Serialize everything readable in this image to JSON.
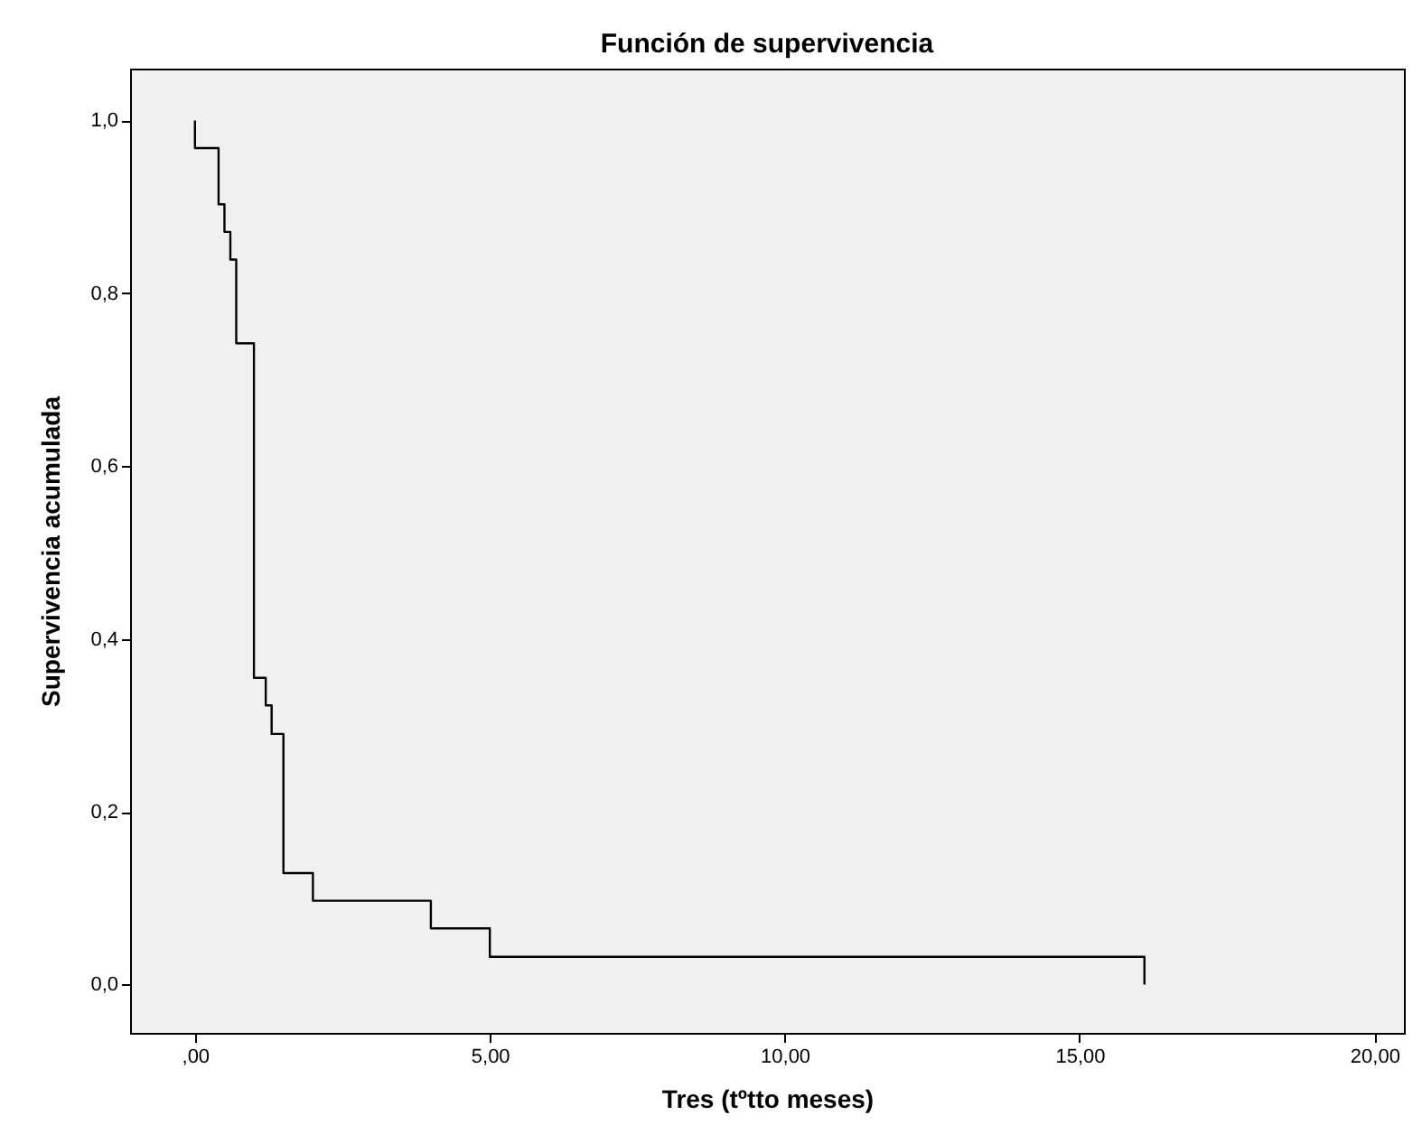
{
  "chart_data": {
    "type": "step",
    "title": "Función de supervivencia",
    "xlabel": "Tres (tºtto meses)",
    "ylabel": "Supervivencia acumulada",
    "x": [
      0,
      0,
      0.4,
      0.5,
      0.6,
      0.7,
      1.0,
      1.2,
      1.3,
      1.5,
      2.0,
      4.0,
      5.0,
      16.1
    ],
    "series": [
      {
        "color": "#000000",
        "values": [
          1.0,
          0.968,
          0.903,
          0.871,
          0.839,
          0.742,
          0.355,
          0.323,
          0.29,
          0.129,
          0.097,
          0.065,
          0.032,
          0.0
        ]
      }
    ],
    "xlim": [
      -1.1,
      20.5
    ],
    "ylim": [
      -0.056,
      1.06
    ],
    "xticks": [
      {
        "value": 0,
        "label": ",00"
      },
      {
        "value": 5,
        "label": "5,00"
      },
      {
        "value": 10,
        "label": "10,00"
      },
      {
        "value": 15,
        "label": "15,00"
      },
      {
        "value": 20,
        "label": "20,00"
      }
    ],
    "yticks": [
      {
        "value": 0,
        "label": "0,0"
      },
      {
        "value": 0.2,
        "label": "0,2"
      },
      {
        "value": 0.4,
        "label": "0,4"
      },
      {
        "value": 0.6,
        "label": "0,6"
      },
      {
        "value": 0.8,
        "label": "0,8"
      },
      {
        "value": 1.0,
        "label": "1,0"
      }
    ],
    "grid": false,
    "legend": false
  }
}
